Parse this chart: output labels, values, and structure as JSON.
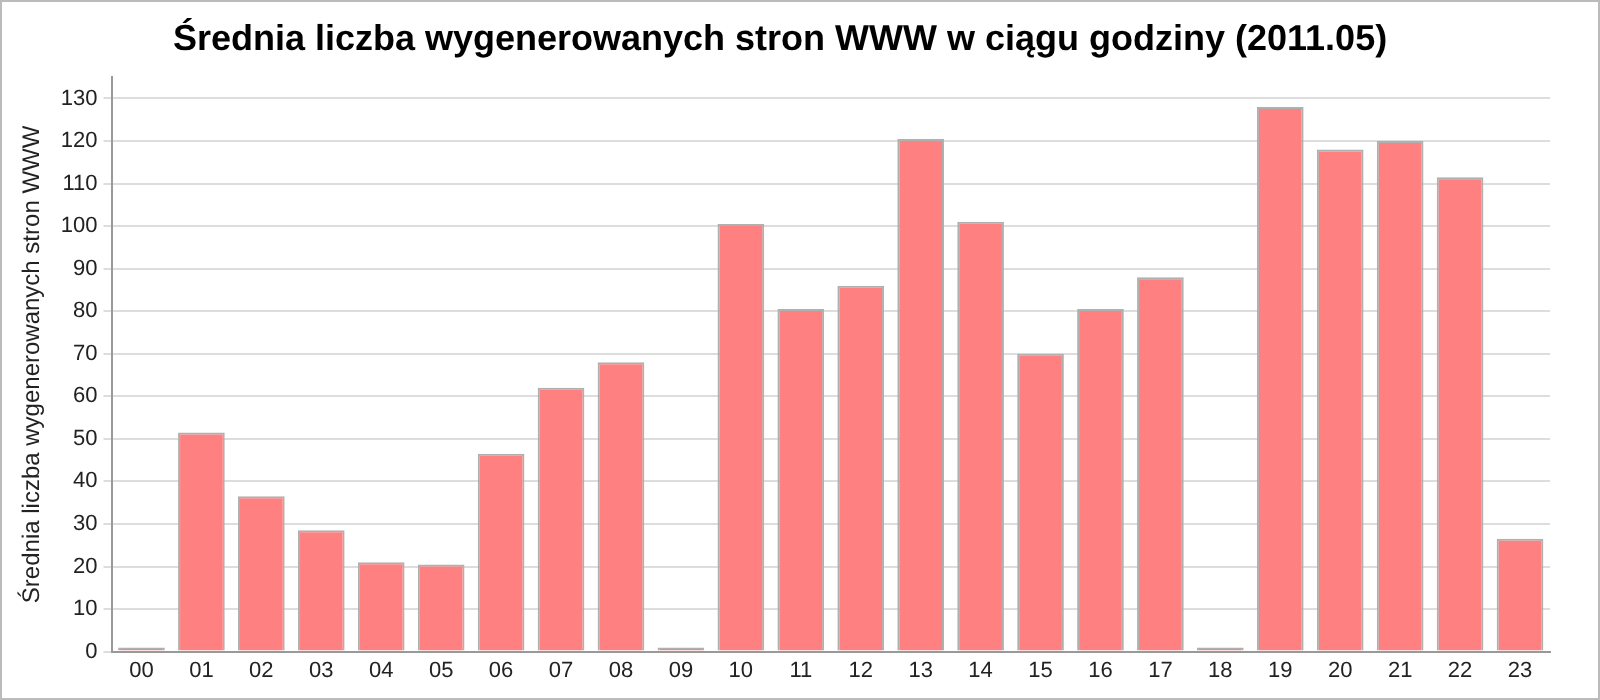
{
  "chart_data": {
    "type": "bar",
    "title": "Średnia liczba wygenerowanych stron WWW w ciągu godziny (2011.05)",
    "ylabel": "Średnia liczba wygenerowanych stron WWW",
    "categories": [
      "00",
      "01",
      "02",
      "03",
      "04",
      "05",
      "06",
      "07",
      "08",
      "09",
      "10",
      "11",
      "12",
      "13",
      "14",
      "15",
      "16",
      "17",
      "18",
      "19",
      "20",
      "21",
      "22",
      "23"
    ],
    "values": [
      0,
      51.5,
      36.5,
      28.5,
      21,
      20.5,
      46.5,
      62,
      68,
      0,
      100.5,
      80.5,
      86,
      120.5,
      101,
      70,
      80.5,
      88,
      0,
      128,
      118,
      120,
      111.5,
      26.5
    ],
    "color": "#ff8080",
    "ylim": [
      0,
      135
    ],
    "yticks": [
      0,
      10,
      20,
      30,
      40,
      50,
      60,
      70,
      80,
      90,
      100,
      110,
      120,
      130
    ],
    "grid": "y",
    "legend": false
  }
}
